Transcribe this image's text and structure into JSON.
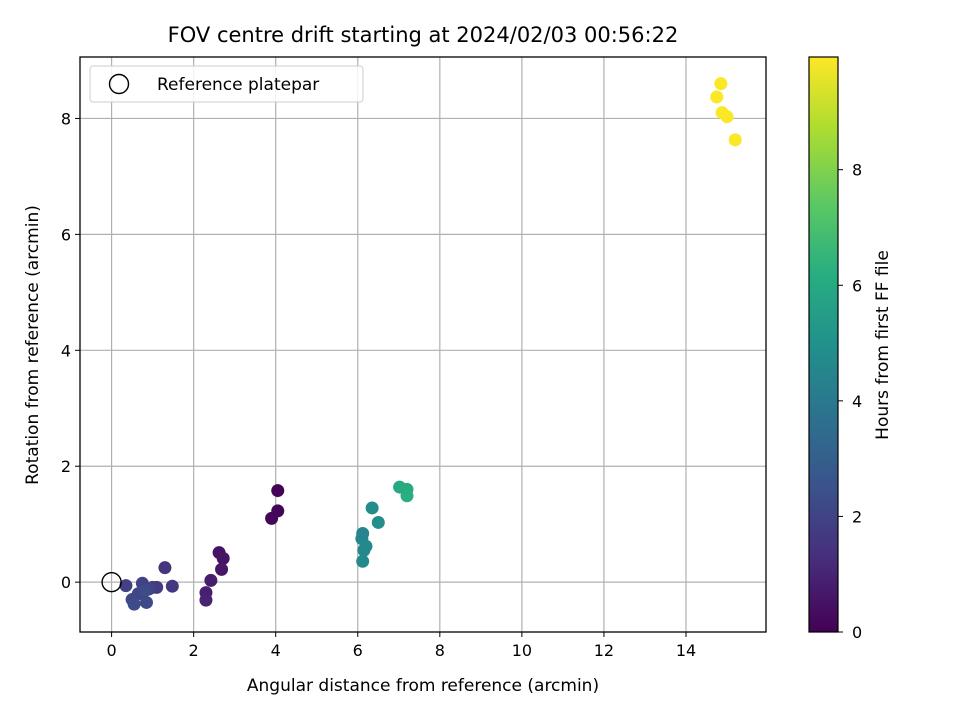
{
  "chart_data": {
    "type": "scatter",
    "title": "FOV centre drift starting at 2024/02/03 00:56:22",
    "xlabel": "Angular distance from reference (arcmin)",
    "ylabel": "Rotation from reference (arcmin)",
    "xlim": [
      -0.77,
      15.95
    ],
    "ylim": [
      -0.86,
      9.06
    ],
    "xticks": [
      0,
      2,
      4,
      6,
      8,
      10,
      12,
      14
    ],
    "yticks": [
      0,
      2,
      4,
      6,
      8
    ],
    "grid": true,
    "legend": {
      "position": "upper-left",
      "entries": [
        {
          "label": "Reference platepar",
          "marker": "open-circle"
        }
      ]
    },
    "reference_point": {
      "x": 0,
      "y": 0
    },
    "colorbar": {
      "label": "Hours from first FF file",
      "colormap": "viridis",
      "range": [
        0,
        9.95
      ],
      "ticks": [
        0,
        2,
        4,
        6,
        8
      ]
    },
    "points": [
      {
        "x": 4.05,
        "y": 1.58,
        "hours": 0.05
      },
      {
        "x": 4.05,
        "y": 1.23,
        "hours": 0.1
      },
      {
        "x": 3.9,
        "y": 1.1,
        "hours": 0.15
      },
      {
        "x": 2.62,
        "y": 0.51,
        "hours": 0.5
      },
      {
        "x": 2.72,
        "y": 0.41,
        "hours": 0.55
      },
      {
        "x": 2.68,
        "y": 0.22,
        "hours": 0.6
      },
      {
        "x": 2.42,
        "y": 0.03,
        "hours": 0.8
      },
      {
        "x": 2.3,
        "y": -0.18,
        "hours": 0.9
      },
      {
        "x": 2.3,
        "y": -0.31,
        "hours": 0.95
      },
      {
        "x": 1.3,
        "y": 0.25,
        "hours": 1.5
      },
      {
        "x": 1.48,
        "y": -0.07,
        "hours": 1.6
      },
      {
        "x": 1.1,
        "y": -0.09,
        "hours": 1.7
      },
      {
        "x": 1.0,
        "y": -0.09,
        "hours": 1.8
      },
      {
        "x": 0.35,
        "y": -0.06,
        "hours": 1.9
      },
      {
        "x": 0.75,
        "y": -0.02,
        "hours": 2.0
      },
      {
        "x": 0.9,
        "y": -0.12,
        "hours": 2.05
      },
      {
        "x": 0.65,
        "y": -0.2,
        "hours": 2.1
      },
      {
        "x": 0.5,
        "y": -0.3,
        "hours": 2.15
      },
      {
        "x": 0.85,
        "y": -0.35,
        "hours": 2.2
      },
      {
        "x": 0.55,
        "y": -0.38,
        "hours": 2.25
      },
      {
        "x": 0.8,
        "y": -0.15,
        "hours": 2.3
      },
      {
        "x": 6.12,
        "y": 0.84,
        "hours": 4.5
      },
      {
        "x": 6.1,
        "y": 0.75,
        "hours": 4.55
      },
      {
        "x": 6.2,
        "y": 0.62,
        "hours": 4.6
      },
      {
        "x": 6.15,
        "y": 0.55,
        "hours": 4.65
      },
      {
        "x": 6.12,
        "y": 0.36,
        "hours": 4.7
      },
      {
        "x": 6.35,
        "y": 1.28,
        "hours": 4.8
      },
      {
        "x": 6.5,
        "y": 1.03,
        "hours": 4.9
      },
      {
        "x": 7.02,
        "y": 1.64,
        "hours": 6.0
      },
      {
        "x": 7.2,
        "y": 1.6,
        "hours": 6.1
      },
      {
        "x": 7.2,
        "y": 1.49,
        "hours": 6.2
      },
      {
        "x": 14.85,
        "y": 8.6,
        "hours": 9.9
      },
      {
        "x": 14.75,
        "y": 8.37,
        "hours": 9.9
      },
      {
        "x": 14.88,
        "y": 8.1,
        "hours": 9.9
      },
      {
        "x": 15.0,
        "y": 8.03,
        "hours": 9.9
      },
      {
        "x": 15.2,
        "y": 7.63,
        "hours": 9.9
      }
    ]
  }
}
